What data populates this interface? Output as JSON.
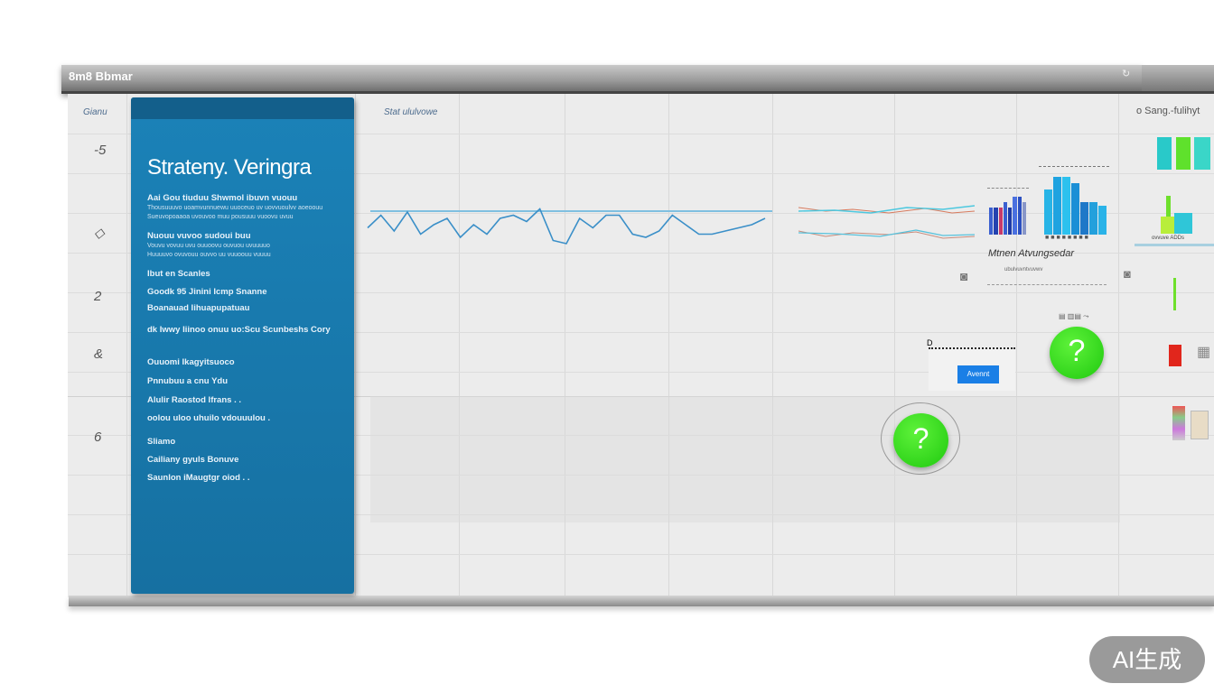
{
  "window": {
    "title": "8m8 Bbmar",
    "refresh_icon": "refresh-icon"
  },
  "side_labels": {
    "top": "Gianu",
    "items": [
      "-5",
      "◇",
      "2",
      "&",
      "6"
    ]
  },
  "panel": {
    "title": "Strateny. Veringra",
    "lines": [
      {
        "text": "Aai Gou  tiuduu Shwmol ibuvn vuouu",
        "small": false
      },
      {
        "text": "Thousuuuvo uoamvunnuewu uuoceuo uv uovvuoulvv aoeoouu",
        "small": true
      },
      {
        "text": "Sueuvopoaaoa uvouvoo muu pousuuu vuoovu uvuu",
        "small": true
      },
      {
        "text": "Nuouu vuvoo  sudoui buu",
        "small": false
      },
      {
        "text": "Vouvu vovuu uvu ouuoovu ouvuou  uvuuuuo",
        "small": true
      },
      {
        "text": "Huuuuvo ovuvouu ouvvo uu vuuoouu vuuuu",
        "small": true
      },
      {
        "text": "Ibut en Scanles",
        "small": false
      },
      {
        "text": "Goodk 95 Jinini Icmp Snanne",
        "small": false
      },
      {
        "text": "Boanauad Iihuapupatuau",
        "small": false
      },
      {
        "text": "dk Iwwy Iiinoo onuu uo:Scu  Scunbeshs  Cory",
        "small": false
      },
      {
        "text": "Ouuomi  Ikagyitsuoco",
        "small": false
      },
      {
        "text": "Pnnubuu a cnu Ydu",
        "small": false
      },
      {
        "text": "Alulir Raostod Ifrans . .",
        "small": false
      },
      {
        "text": "oolou uloo uhuilo vdouuulou .",
        "small": false
      },
      {
        "text": "Sliamo",
        "small": false
      },
      {
        "text": "Cailiany gyuls Bonuve",
        "small": false
      },
      {
        "text": "Saunlon iMaugtgr oiod . .",
        "small": false
      }
    ]
  },
  "main": {
    "chart_label": "Stat ululvowe"
  },
  "right": {
    "caption": "Mtnen Atvungsedar",
    "sub_caption": "ubulvuvntvuvwv",
    "top_right_label": "o  Sang.-fulihyt",
    "small_label": "ovvuve  ADDs",
    "button_label": "Avennt",
    "box_label": "D"
  },
  "watermark": "AI生成",
  "colors": {
    "panel": "#1a7aad",
    "accent_green": "#2fd81a",
    "button_blue": "#1a7fe6"
  },
  "sparklines": {
    "main": [
      5,
      9,
      4,
      10,
      3,
      6,
      8,
      2,
      6,
      3,
      8,
      9,
      7,
      11,
      1,
      0,
      8,
      5,
      9,
      9,
      3,
      2,
      4,
      9,
      6,
      3,
      3,
      4,
      5,
      6,
      8
    ],
    "flat": [
      5,
      5,
      5,
      5,
      5,
      5,
      5,
      5,
      5,
      5,
      5,
      5,
      5,
      5,
      5
    ]
  },
  "bar_groups": {
    "cyan": [
      7,
      9,
      9,
      8,
      5,
      5,
      4.5
    ],
    "multi": [
      5,
      5,
      5,
      6,
      5,
      7,
      7,
      6
    ]
  }
}
